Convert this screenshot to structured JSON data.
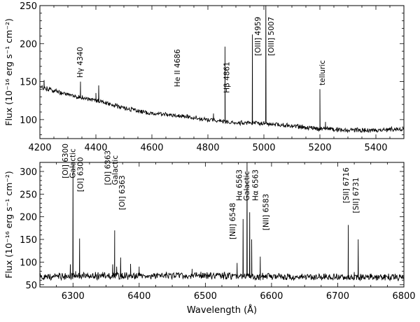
{
  "chart_data": [
    {
      "type": "line",
      "id": "top",
      "xlabel": "",
      "ylabel": "Flux (10⁻¹⁶ erg s⁻¹ cm⁻²)",
      "xlim": [
        4200,
        5500
      ],
      "ylim": [
        75,
        250
      ],
      "xticks": [
        4200,
        4400,
        4600,
        4800,
        5000,
        5200,
        5400
      ],
      "yticks": [
        100,
        150,
        200,
        250
      ],
      "grid": false,
      "continuum": [
        [
          4200,
          143
        ],
        [
          4300,
          133
        ],
        [
          4400,
          125
        ],
        [
          4500,
          115
        ],
        [
          4600,
          108
        ],
        [
          4700,
          105
        ],
        [
          4800,
          100
        ],
        [
          4900,
          96
        ],
        [
          5000,
          95
        ],
        [
          5100,
          92
        ],
        [
          5200,
          88
        ],
        [
          5300,
          86
        ],
        [
          5400,
          86
        ],
        [
          5500,
          88
        ]
      ],
      "series": [
        {
          "x": [
            4200,
            4215,
            4225,
            4240,
            4260,
            4280,
            4300,
            4320,
            4340,
            4345,
            4350,
            4370,
            4390,
            4400,
            4410,
            4430,
            4450,
            4480,
            4500,
            4540,
            4580,
            4620,
            4650,
            4686,
            4690,
            4720,
            4760,
            4800,
            4820,
            4850,
            4861,
            4866,
            4880,
            4900,
            4940,
            4959,
            4965,
            4980,
            5000,
            5007,
            5015,
            5040,
            5080,
            5120,
            5160,
            5190,
            5200,
            5205,
            5220,
            5240,
            5260,
            5300,
            5340,
            5380,
            5420,
            5460,
            5500
          ],
          "y": [
            143,
            152,
            138,
            141,
            130,
            142,
            128,
            132,
            136,
            150,
            127,
            131,
            118,
            135,
            145,
            126,
            120,
            124,
            115,
            112,
            108,
            110,
            104,
            113,
            105,
            103,
            101,
            100,
            108,
            98,
            196,
            97,
            96,
            95,
            96,
            212,
            95,
            94,
            94,
            250,
            93,
            92,
            91,
            90,
            89,
            88,
            140,
            89,
            97,
            93,
            87,
            86,
            85,
            86,
            86,
            87,
            88
          ]
        }
      ],
      "annotations": [
        {
          "text": "Hγ 4340",
          "x": 4343,
          "y": 155
        },
        {
          "text": "He II 4686",
          "x": 4690,
          "y": 143
        },
        {
          "text": "Hβ 4861",
          "x": 4866,
          "y": 135
        },
        {
          "text": "[OIII] 4959",
          "x": 4977,
          "y": 184
        },
        {
          "text": "[OIII] 5007",
          "x": 5025,
          "y": 184
        },
        {
          "text": "telluric",
          "x": 5207,
          "y": 145
        }
      ]
    },
    {
      "type": "line",
      "id": "bottom",
      "xlabel": "Wavelength (Å)",
      "ylabel": "Flux (10⁻¹⁶ erg s⁻¹ cm⁻²)",
      "xlim": [
        6250,
        6800
      ],
      "ylim": [
        45,
        320
      ],
      "xticks": [
        6300,
        6400,
        6500,
        6600,
        6700,
        6800
      ],
      "yticks": [
        50,
        100,
        150,
        200,
        250,
        300
      ],
      "grid": false,
      "continuum": [
        [
          6250,
          68
        ],
        [
          6400,
          70
        ],
        [
          6500,
          70
        ],
        [
          6600,
          68
        ],
        [
          6700,
          67
        ],
        [
          6800,
          66
        ]
      ],
      "series": [
        {
          "x": [
            6250,
            6270,
            6290,
            6296,
            6300,
            6304,
            6310,
            6320,
            6345,
            6360,
            6363,
            6366,
            6372,
            6380,
            6387,
            6390,
            6400,
            6420,
            6450,
            6480,
            6500,
            6530,
            6548,
            6552,
            6557,
            6563,
            6567,
            6570,
            6575,
            6583,
            6588,
            6600,
            6630,
            6660,
            6690,
            6716,
            6720,
            6725,
            6731,
            6740,
            6770,
            6800
          ],
          "y": [
            70,
            75,
            72,
            95,
            320,
            80,
            152,
            74,
            78,
            95,
            170,
            90,
            110,
            72,
            96,
            70,
            90,
            73,
            74,
            85,
            70,
            70,
            98,
            72,
            195,
            320,
            210,
            150,
            72,
            112,
            70,
            72,
            70,
            68,
            70,
            182,
            74,
            78,
            150,
            70,
            68,
            66
          ]
        }
      ],
      "annotations": [
        {
          "text": "[OI] 6300",
          "x": 6288,
          "y": 285
        },
        {
          "text": "Galactic",
          "x": 6299,
          "y": 285
        },
        {
          "text": "[OI] 6300",
          "x": 6311,
          "y": 255
        },
        {
          "text": "[OI] 6363",
          "x": 6352,
          "y": 270
        },
        {
          "text": "Galactic",
          "x": 6363,
          "y": 270
        },
        {
          "text": "[OI] 6363",
          "x": 6374,
          "y": 215
        },
        {
          "text": "[NII] 6548",
          "x": 6541,
          "y": 150
        },
        {
          "text": "Hα 6563",
          "x": 6551,
          "y": 235
        },
        {
          "text": "Galactic",
          "x": 6562,
          "y": 235
        },
        {
          "text": "Hα 6563",
          "x": 6575,
          "y": 235
        },
        {
          "text": "[NII] 6583",
          "x": 6591,
          "y": 170
        },
        {
          "text": "[SII] 6716",
          "x": 6712,
          "y": 230
        },
        {
          "text": "[SII] 6731",
          "x": 6727,
          "y": 208
        }
      ]
    }
  ]
}
